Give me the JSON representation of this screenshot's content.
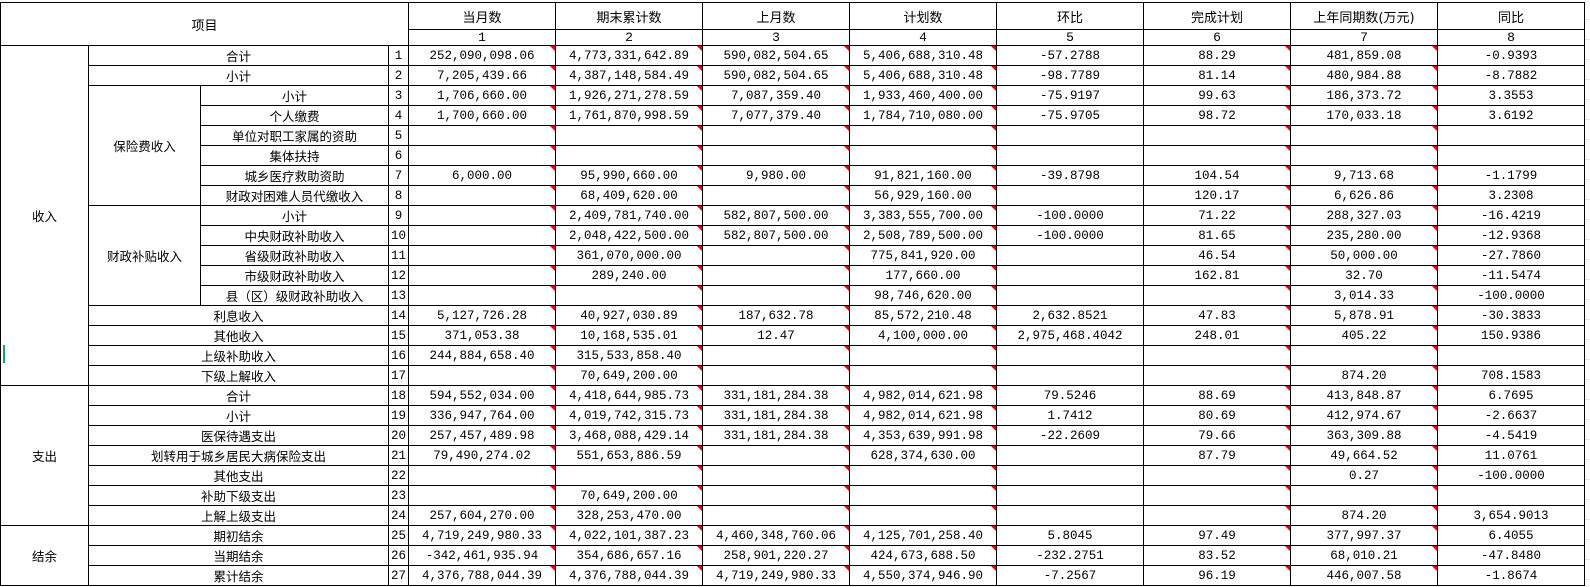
{
  "header": {
    "item_label": "项目",
    "columns": [
      {
        "label": "当月数",
        "index": "1"
      },
      {
        "label": "期末累计数",
        "index": "2"
      },
      {
        "label": "上月数",
        "index": "3"
      },
      {
        "label": "计划数",
        "index": "4"
      },
      {
        "label": "环比",
        "index": "5"
      },
      {
        "label": "完成计划",
        "index": "6"
      },
      {
        "label": "上年同期数(万元)",
        "index": "7"
      },
      {
        "label": "同比",
        "index": "8"
      }
    ]
  },
  "comment_marker_color": "#e00000",
  "sections": [
    {
      "label": "收入",
      "items": [
        {
          "label": "合计",
          "no": "1",
          "values": [
            "252,090,098.06",
            "4,773,331,642.89",
            "590,082,504.65",
            "5,406,688,310.48",
            "-57.2788",
            "88.29",
            "481,859.08",
            "-0.9393"
          ]
        },
        {
          "label": "小计",
          "no": "2",
          "values": [
            "7,205,439.66",
            "4,387,148,584.49",
            "590,082,504.65",
            "5,406,688,310.48",
            "-98.7789",
            "81.14",
            "480,984.88",
            "-8.7882"
          ]
        },
        {
          "group": "保险费收入",
          "rows": [
            {
              "label": "小计",
              "no": "3",
              "values": [
                "1,706,660.00",
                "1,926,271,278.59",
                "7,087,359.40",
                "1,933,460,400.00",
                "-75.9197",
                "99.63",
                "186,373.72",
                "3.3553"
              ]
            },
            {
              "label": "个人缴费",
              "no": "4",
              "values": [
                "1,700,660.00",
                "1,761,870,998.59",
                "7,077,379.40",
                "1,784,710,080.00",
                "-75.9705",
                "98.72",
                "170,033.18",
                "3.6192"
              ]
            },
            {
              "label": "单位对职工家属的资助",
              "no": "5",
              "values": [
                "",
                "",
                "",
                "",
                "",
                "",
                "",
                ""
              ]
            },
            {
              "label": "集体扶持",
              "no": "6",
              "values": [
                "",
                "",
                "",
                "",
                "",
                "",
                "",
                ""
              ]
            },
            {
              "label": "城乡医疗救助资助",
              "no": "7",
              "values": [
                "6,000.00",
                "95,990,660.00",
                "9,980.00",
                "91,821,160.00",
                "-39.8798",
                "104.54",
                "9,713.68",
                "-1.1799"
              ]
            },
            {
              "label": "财政对困难人员代缴收入",
              "no": "8",
              "values": [
                "",
                "68,409,620.00",
                "",
                "56,929,160.00",
                "",
                "120.17",
                "6,626.86",
                "3.2308"
              ]
            }
          ]
        },
        {
          "group": "财政补贴收入",
          "rows": [
            {
              "label": "小计",
              "no": "9",
              "values": [
                "",
                "2,409,781,740.00",
                "582,807,500.00",
                "3,383,555,700.00",
                "-100.0000",
                "71.22",
                "288,327.03",
                "-16.4219"
              ]
            },
            {
              "label": "中央财政补助收入",
              "no": "10",
              "values": [
                "",
                "2,048,422,500.00",
                "582,807,500.00",
                "2,508,789,500.00",
                "-100.0000",
                "81.65",
                "235,280.00",
                "-12.9368"
              ]
            },
            {
              "label": "省级财政补助收入",
              "no": "11",
              "values": [
                "",
                "361,070,000.00",
                "",
                "775,841,920.00",
                "",
                "46.54",
                "50,000.00",
                "-27.7860"
              ]
            },
            {
              "label": "市级财政补助收入",
              "no": "12",
              "values": [
                "",
                "289,240.00",
                "",
                "177,660.00",
                "",
                "162.81",
                "32.70",
                "-11.5474"
              ]
            },
            {
              "label": "县（区）级财政补助收入",
              "no": "13",
              "values": [
                "",
                "",
                "",
                "98,746,620.00",
                "",
                "",
                "3,014.33",
                "-100.0000"
              ]
            }
          ]
        },
        {
          "label": "利息收入",
          "no": "14",
          "values": [
            "5,127,726.28",
            "40,927,030.89",
            "187,632.78",
            "85,572,210.48",
            "2,632.8521",
            "47.83",
            "5,878.91",
            "-30.3833"
          ]
        },
        {
          "label": "其他收入",
          "no": "15",
          "values": [
            "371,053.38",
            "10,168,535.01",
            "12.47",
            "4,100,000.00",
            "2,975,468.4042",
            "248.01",
            "405.22",
            "150.9386"
          ]
        },
        {
          "label": "上级补助收入",
          "no": "16",
          "values": [
            "244,884,658.40",
            "315,533,858.40",
            "",
            "",
            "",
            "",
            "",
            ""
          ]
        },
        {
          "label": "下级上解收入",
          "no": "17",
          "values": [
            "",
            "70,649,200.00",
            "",
            "",
            "",
            "",
            "874.20",
            "708.1583"
          ]
        }
      ]
    },
    {
      "label": "支出",
      "items": [
        {
          "label": "合计",
          "no": "18",
          "values": [
            "594,552,034.00",
            "4,418,644,985.73",
            "331,181,284.38",
            "4,982,014,621.98",
            "79.5246",
            "88.69",
            "413,848.87",
            "6.7695"
          ]
        },
        {
          "label": "小计",
          "no": "19",
          "values": [
            "336,947,764.00",
            "4,019,742,315.73",
            "331,181,284.38",
            "4,982,014,621.98",
            "1.7412",
            "80.69",
            "412,974.67",
            "-2.6637"
          ]
        },
        {
          "label": "医保待遇支出",
          "no": "20",
          "values": [
            "257,457,489.98",
            "3,468,088,429.14",
            "331,181,284.38",
            "4,353,639,991.98",
            "-22.2609",
            "79.66",
            "363,309.88",
            "-4.5419"
          ]
        },
        {
          "label": "划转用于城乡居民大病保险支出",
          "no": "21",
          "values": [
            "79,490,274.02",
            "551,653,886.59",
            "",
            "628,374,630.00",
            "",
            "87.79",
            "49,664.52",
            "11.0761"
          ]
        },
        {
          "label": "其他支出",
          "no": "22",
          "values": [
            "",
            "",
            "",
            "",
            "",
            "",
            "0.27",
            "-100.0000"
          ]
        },
        {
          "label": "补助下级支出",
          "no": "23",
          "values": [
            "",
            "70,649,200.00",
            "",
            "",
            "",
            "",
            "",
            ""
          ]
        },
        {
          "label": "上解上级支出",
          "no": "24",
          "values": [
            "257,604,270.00",
            "328,253,470.00",
            "",
            "",
            "",
            "",
            "874.20",
            "3,654.9013"
          ]
        }
      ]
    },
    {
      "label": "结余",
      "items": [
        {
          "label": "期初结余",
          "no": "25",
          "values": [
            "4,719,249,980.33",
            "4,022,101,387.23",
            "4,460,348,760.06",
            "4,125,701,258.40",
            "5.8045",
            "97.49",
            "377,997.37",
            "6.4055"
          ]
        },
        {
          "label": "当期结余",
          "no": "26",
          "values": [
            "-342,461,935.94",
            "354,686,657.16",
            "258,901,220.27",
            "424,673,688.50",
            "-232.2751",
            "83.52",
            "68,010.21",
            "-47.8480"
          ]
        },
        {
          "label": "累计结余",
          "no": "27",
          "values": [
            "4,376,788,044.39",
            "4,376,788,044.39",
            "4,719,249,980.33",
            "4,550,374,946.90",
            "-7.2567",
            "96.19",
            "446,007.58",
            "-1.8674"
          ]
        }
      ]
    }
  ]
}
